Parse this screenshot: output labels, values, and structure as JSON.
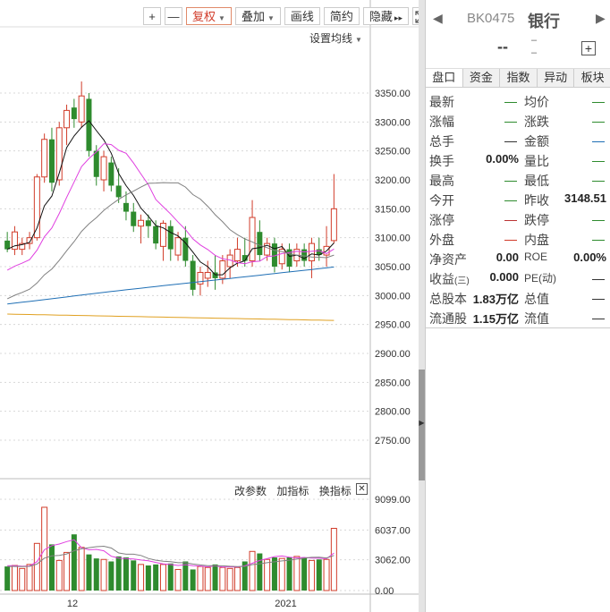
{
  "toolbar": {
    "plus_label": "+",
    "minus_label": "—",
    "fuquan_label": "复权",
    "diejia_label": "叠加",
    "huaxian_label": "画线",
    "jianyue_label": "简约",
    "yincang_label": "隐藏",
    "yincang_suffix": "▸▸",
    "fullscreen_icon": "fullscreen-icon"
  },
  "ma_setting_label": "设置均线",
  "indicator_toolbar": {
    "change_params": "改参数",
    "add_indicator": "加指标",
    "switch_indicator": "换指标",
    "close_icon": "close-icon"
  },
  "colors": {
    "up": "#d13c2a",
    "down": "#2e8b2e",
    "ma5": "#111111",
    "ma10": "#e040e0",
    "ma20": "#808080",
    "ma60": "#1f6fb5",
    "ma120": "#e0a020",
    "grid": "#d8d8d8"
  },
  "chart_data": [
    {
      "type": "candlestick",
      "price_axis": [
        "3350.00",
        "3300.00",
        "3250.00",
        "3200.00",
        "3150.00",
        "3100.00",
        "3050.00",
        "3000.00",
        "2950.00",
        "2900.00",
        "2850.00",
        "2800.00",
        "2750.00"
      ],
      "ylim": [
        2720,
        3380
      ],
      "candles": [
        [
          3095,
          3110,
          3075,
          3080
        ],
        [
          3080,
          3120,
          3070,
          3110
        ],
        [
          3080,
          3100,
          3070,
          3090
        ],
        [
          3090,
          3110,
          3080,
          3100
        ],
        [
          3100,
          3210,
          3095,
          3205
        ],
        [
          3205,
          3280,
          3195,
          3270
        ],
        [
          3270,
          3290,
          3180,
          3195
        ],
        [
          3200,
          3300,
          3190,
          3290
        ],
        [
          3290,
          3330,
          3260,
          3320
        ],
        [
          3325,
          3340,
          3290,
          3305
        ],
        [
          3300,
          3370,
          3290,
          3345
        ],
        [
          3340,
          3350,
          3240,
          3250
        ],
        [
          3250,
          3260,
          3190,
          3205
        ],
        [
          3200,
          3250,
          3180,
          3240
        ],
        [
          3230,
          3240,
          3180,
          3190
        ],
        [
          3190,
          3220,
          3160,
          3170
        ],
        [
          3160,
          3180,
          3130,
          3145
        ],
        [
          3145,
          3160,
          3110,
          3120
        ],
        [
          3120,
          3140,
          3090,
          3130
        ],
        [
          3130,
          3140,
          3100,
          3120
        ],
        [
          3120,
          3130,
          3080,
          3090
        ],
        [
          3085,
          3130,
          3060,
          3125
        ],
        [
          3120,
          3130,
          3060,
          3080
        ],
        [
          3070,
          3110,
          3060,
          3100
        ],
        [
          3100,
          3120,
          3050,
          3060
        ],
        [
          3060,
          3070,
          3000,
          3010
        ],
        [
          3020,
          3050,
          3000,
          3040
        ],
        [
          3030,
          3060,
          3015,
          3040
        ],
        [
          3040,
          3070,
          3010,
          3030
        ],
        [
          3030,
          3070,
          3020,
          3060
        ],
        [
          3050,
          3080,
          3030,
          3070
        ],
        [
          3060,
          3100,
          3050,
          3080
        ],
        [
          3070,
          3100,
          3050,
          3060
        ],
        [
          3060,
          3165,
          3050,
          3135
        ],
        [
          3110,
          3130,
          3060,
          3070
        ],
        [
          3070,
          3100,
          3060,
          3090
        ],
        [
          3090,
          3100,
          3040,
          3050
        ],
        [
          3055,
          3090,
          3045,
          3080
        ],
        [
          3080,
          3090,
          3040,
          3050
        ],
        [
          3060,
          3090,
          3050,
          3080
        ],
        [
          3080,
          3090,
          3050,
          3060
        ],
        [
          3060,
          3100,
          3030,
          3090
        ],
        [
          3080,
          3100,
          3060,
          3070
        ],
        [
          3070,
          3120,
          3050,
          3085
        ],
        [
          3095,
          3210,
          3090,
          3150
        ]
      ],
      "volume_axis": [
        "9099.00",
        "6037.00",
        "3062.00",
        "0.00"
      ],
      "volume_ylim": [
        0,
        9099
      ],
      "volumes": [
        2400,
        2500,
        2200,
        2600,
        4700,
        8300,
        4600,
        3000,
        3800,
        5600,
        4300,
        3600,
        3200,
        3100,
        2900,
        3400,
        3300,
        3000,
        2600,
        2500,
        2600,
        2600,
        2700,
        2100,
        2900,
        2100,
        2400,
        2300,
        2600,
        2300,
        2200,
        2300,
        2900,
        3900,
        3700,
        3100,
        3300,
        3200,
        3300,
        3400,
        3300,
        3000,
        3100,
        3100,
        6200
      ],
      "x_labels": [
        {
          "index": 9,
          "label": "12"
        },
        {
          "index": 37,
          "label": "2021"
        }
      ]
    }
  ],
  "panel": {
    "code": "BK0475",
    "name": "银行",
    "price": "--",
    "chg1": "–",
    "chg2": "–",
    "add_icon": "add-icon",
    "prev_icon": "prev-icon",
    "next_icon": "next-icon",
    "tabs": [
      "盘口",
      "资金",
      "指数",
      "异动",
      "板块"
    ],
    "rows": [
      {
        "l1": "最新",
        "v1": "",
        "c1": "#2e8b2e",
        "l2": "均价",
        "v2": "",
        "c2": "#2e8b2e"
      },
      {
        "l1": "涨幅",
        "v1": "",
        "c1": "#2e8b2e",
        "l2": "涨跌",
        "v2": "",
        "c2": "#2e8b2e"
      },
      {
        "l1": "总手",
        "v1": "",
        "c1": "#333333",
        "l2": "金额",
        "v2": "",
        "c2": "#1f6fb5"
      },
      {
        "l1": "换手",
        "v1": "0.00%",
        "c1": "",
        "l2": "量比",
        "v2": "",
        "c2": "#2e8b2e"
      },
      {
        "l1": "最高",
        "v1": "",
        "c1": "#2e8b2e",
        "l2": "最低",
        "v2": "",
        "c2": "#2e8b2e"
      },
      {
        "l1": "今开",
        "v1": "",
        "c1": "#2e8b2e",
        "l2": "昨收",
        "v2": "3148.51",
        "c2": ""
      },
      {
        "l1": "涨停",
        "v1": "",
        "c1": "#b33",
        "l2": "跌停",
        "v2": "",
        "c2": "#2e8b2e"
      },
      {
        "l1": "外盘",
        "v1": "",
        "c1": "#d13c2a",
        "l2": "内盘",
        "v2": "",
        "c2": "#2e8b2e"
      },
      {
        "l1": "净资产",
        "v1": "0.00",
        "c1": "",
        "l2": "ROE",
        "v2": "0.00%",
        "c2": ""
      },
      {
        "l1": "收益",
        "l1_sub": "(三)",
        "v1": "0.000",
        "c1": "",
        "l2": "PE(动)",
        "v2": "",
        "c2": "#333333"
      },
      {
        "l1": "总股本",
        "v1": "1.83万亿",
        "c1": "",
        "l2": "总值",
        "v2": "",
        "c2": "#333333"
      },
      {
        "l1": "流通股",
        "v1": "1.15万亿",
        "c1": "",
        "l2": "流值",
        "v2": "",
        "c2": "#333333"
      }
    ]
  }
}
